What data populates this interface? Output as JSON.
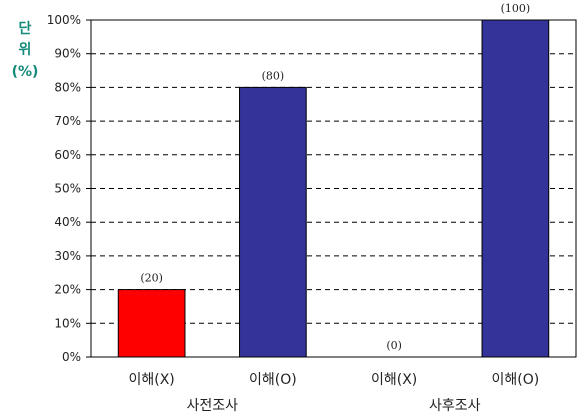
{
  "chart_data": {
    "type": "bar",
    "unit_label": [
      "단",
      "위",
      "(%)"
    ],
    "categories": [
      "이해(X)",
      "이해(O)",
      "이해(X)",
      "이해(O)"
    ],
    "groups": [
      "사전조사",
      "사후조사"
    ],
    "values": [
      20,
      80,
      0,
      100
    ],
    "data_labels": [
      "(20)",
      "(80)",
      "(0)",
      "(100)"
    ],
    "bar_colors": [
      "#ff0000",
      "#33339a",
      "#ff0000",
      "#33339a"
    ],
    "ylim": [
      0,
      100
    ],
    "yticks": [
      "0%",
      "10%",
      "20%",
      "30%",
      "40%",
      "50%",
      "60%",
      "70%",
      "80%",
      "90%",
      "100%"
    ],
    "grid": "dashed horizontal",
    "legend": "none"
  }
}
